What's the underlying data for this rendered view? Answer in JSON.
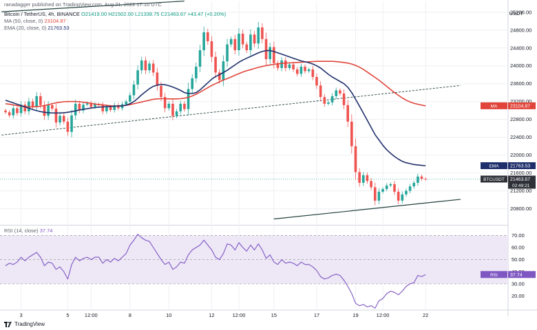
{
  "header": {
    "publisher": "ranadagger published on TradingView.com, Aug 21, 2022 17:10 UTC",
    "symbol": "Bitcoin / TetherUS, 4h, BINANCE",
    "ohlc": "O21419.00 H21502.00 L21338.75 C21463.67 +43.47 (+0.20%)",
    "ma_label": "MA (50, close, 0)",
    "ma_value": "23104.87",
    "ema_label": "EMA (20, close, 0)",
    "ema_value": "21763.53",
    "currency": "USDT"
  },
  "rsi_header": {
    "label": "RSI (14, close)",
    "value": "37.74"
  },
  "logo": {
    "text": "TradingView"
  },
  "colors": {
    "up": "#26a69a",
    "down": "#ef5350",
    "ema": "#1e2f6b",
    "ma": "#e0443a",
    "rsi": "#7e57c2",
    "rsi_band": "#ede7f6",
    "grid": "#eeeff3",
    "trend": "#1f3f3a",
    "price_tag": "#2e3238"
  },
  "chart_data": {
    "type": "candlestick",
    "pane_price": {
      "y_ticks": [
        25200,
        24800,
        24400,
        24000,
        23600,
        23200,
        22800,
        22400,
        22000,
        21600,
        21200,
        20800
      ],
      "ylim": [
        20470,
        25320
      ]
    },
    "pane_rsi": {
      "y_ticks": [
        70,
        60,
        50,
        40,
        30,
        20
      ],
      "ylim": [
        9,
        77
      ],
      "band": [
        30,
        70
      ]
    },
    "x_labels": [
      {
        "label": "3",
        "i": 4
      },
      {
        "label": "5",
        "i": 16
      },
      {
        "label": "12:00",
        "i": 22
      },
      {
        "label": "8",
        "i": 32
      },
      {
        "label": "10",
        "i": 42
      },
      {
        "label": "12",
        "i": 53
      },
      {
        "label": "12:00",
        "i": 60
      },
      {
        "label": "15",
        "i": 69
      },
      {
        "label": "17",
        "i": 80
      },
      {
        "label": "19",
        "i": 90
      },
      {
        "label": "12:00",
        "i": 97
      },
      {
        "label": "22",
        "i": 108
      }
    ],
    "close": [
      22960,
      22890,
      23050,
      22940,
      23130,
      22980,
      23200,
      23080,
      23320,
      23120,
      22880,
      23120,
      23040,
      22730,
      22880,
      22750,
      22520,
      22890,
      23150,
      23000,
      23130,
      23160,
      23080,
      23140,
      23120,
      22980,
      23080,
      23010,
      23120,
      23050,
      23140,
      23200,
      23340,
      23580,
      23900,
      24120,
      23900,
      24050,
      23850,
      23550,
      23300,
      23050,
      23150,
      22880,
      22980,
      23150,
      23030,
      23480,
      23720,
      23980,
      24350,
      24750,
      24550,
      24200,
      23850,
      23680,
      24100,
      24480,
      24600,
      24350,
      24720,
      24480,
      24350,
      24700,
      24500,
      24860,
      24600,
      24150,
      24420,
      24060,
      23950,
      24120,
      23950,
      24030,
      23920,
      23820,
      23980,
      23880,
      23920,
      23750,
      23560,
      23300,
      23150,
      23180,
      23320,
      23450,
      23380,
      23120,
      22750,
      22200,
      21620,
      21380,
      21550,
      21420,
      21280,
      20980,
      21180,
      21240,
      21320,
      21350,
      21180,
      20980,
      21120,
      21200,
      21300,
      21380,
      21520,
      21470,
      21463.67
    ],
    "ema_20": [
      23230,
      23200,
      23170,
      23140,
      23110,
      23080,
      23050,
      23020,
      22995,
      22975,
      22960,
      22950,
      22945,
      22945,
      22945,
      22950,
      22960,
      22975,
      22990,
      23010,
      23025,
      23040,
      23055,
      23065,
      23075,
      23080,
      23085,
      23090,
      23095,
      23100,
      23105,
      23120,
      23150,
      23200,
      23270,
      23350,
      23420,
      23490,
      23540,
      23570,
      23580,
      23575,
      23555,
      23525,
      23490,
      23450,
      23400,
      23380,
      23380,
      23400,
      23460,
      23540,
      23620,
      23700,
      23760,
      23800,
      23850,
      23900,
      23960,
      24020,
      24080,
      24130,
      24170,
      24210,
      24250,
      24290,
      24320,
      24340,
      24340,
      24320,
      24290,
      24260,
      24230,
      24200,
      24170,
      24140,
      24110,
      24090,
      24070,
      24040,
      24000,
      23950,
      23880,
      23810,
      23750,
      23700,
      23650,
      23600,
      23520,
      23400,
      23250,
      23100,
      22940,
      22780,
      22620,
      22460,
      22340,
      22220,
      22120,
      22040,
      21970,
      21910,
      21860,
      21830,
      21810,
      21790,
      21780,
      21770,
      21763.53
    ],
    "ma_50": [
      23150,
      23140,
      23125,
      23110,
      23095,
      23085,
      23080,
      23080,
      23085,
      23095,
      23110,
      23130,
      23150,
      23170,
      23185,
      23195,
      23200,
      23200,
      23200,
      23195,
      23185,
      23175,
      23160,
      23145,
      23135,
      23125,
      23115,
      23105,
      23100,
      23100,
      23105,
      23115,
      23130,
      23150,
      23170,
      23190,
      23210,
      23230,
      23250,
      23260,
      23265,
      23265,
      23260,
      23260,
      23260,
      23265,
      23275,
      23295,
      23325,
      23365,
      23410,
      23460,
      23510,
      23560,
      23600,
      23640,
      23680,
      23715,
      23750,
      23790,
      23825,
      23860,
      23890,
      23915,
      23940,
      23965,
      23985,
      24005,
      24020,
      24035,
      24045,
      24055,
      24060,
      24065,
      24070,
      24075,
      24080,
      24085,
      24090,
      24095,
      24100,
      24100,
      24100,
      24100,
      24100,
      24095,
      24085,
      24075,
      24060,
      24040,
      24010,
      23970,
      23920,
      23860,
      23800,
      23740,
      23680,
      23610,
      23540,
      23470,
      23400,
      23340,
      23280,
      23230,
      23190,
      23160,
      23140,
      23120,
      23104.87
    ],
    "rsi": [
      45,
      47,
      46,
      48,
      52,
      49,
      52,
      54,
      56,
      52,
      45,
      48,
      47,
      42,
      44,
      40,
      34,
      46,
      52,
      49,
      51,
      52,
      50,
      52,
      52,
      47,
      50,
      48,
      51,
      49,
      52,
      55,
      62,
      66,
      71,
      68,
      66,
      65,
      60,
      55,
      50,
      46,
      48,
      42,
      44,
      48,
      47,
      54,
      58,
      60,
      62,
      66,
      62,
      58,
      52,
      50,
      55,
      63,
      62,
      58,
      64,
      60,
      57,
      62,
      58,
      63,
      58,
      51,
      54,
      48,
      46,
      50,
      47,
      48,
      47,
      45,
      48,
      46,
      46,
      44,
      41,
      36,
      34,
      35,
      37,
      38,
      37,
      33,
      28,
      22,
      14,
      12,
      13,
      11,
      12,
      10,
      16,
      18,
      22,
      24,
      23,
      21,
      24,
      28,
      30,
      31,
      37,
      36,
      37.74
    ],
    "trendlines": [
      {
        "name": "upper",
        "from": {
          "i": -1,
          "v": 22450
        },
        "to": {
          "i": 117,
          "v": 23560
        }
      },
      {
        "name": "lower",
        "from": {
          "i": 69,
          "v": 20570
        },
        "to": {
          "i": 117,
          "v": 21010
        }
      },
      {
        "name": "top",
        "from": {
          "i": -1,
          "v": 25210
        },
        "to": {
          "i": 46,
          "v": 25450
        }
      }
    ],
    "price_tags": [
      {
        "text": "MA",
        "value": "23104.87",
        "v": 23104.87,
        "color": "#e0443a"
      },
      {
        "text": "EMA",
        "value": "21763.53",
        "v": 21763.53,
        "color": "#1e2f6b"
      },
      {
        "text": "BTCUSDT",
        "value": "21463.67",
        "sub": "02:49:21",
        "v": 21463.67,
        "color": "#2e3238"
      }
    ],
    "rsi_tag": {
      "text": "RSI",
      "value": "37.74",
      "v": 37.74,
      "color": "#7e57c2"
    }
  }
}
